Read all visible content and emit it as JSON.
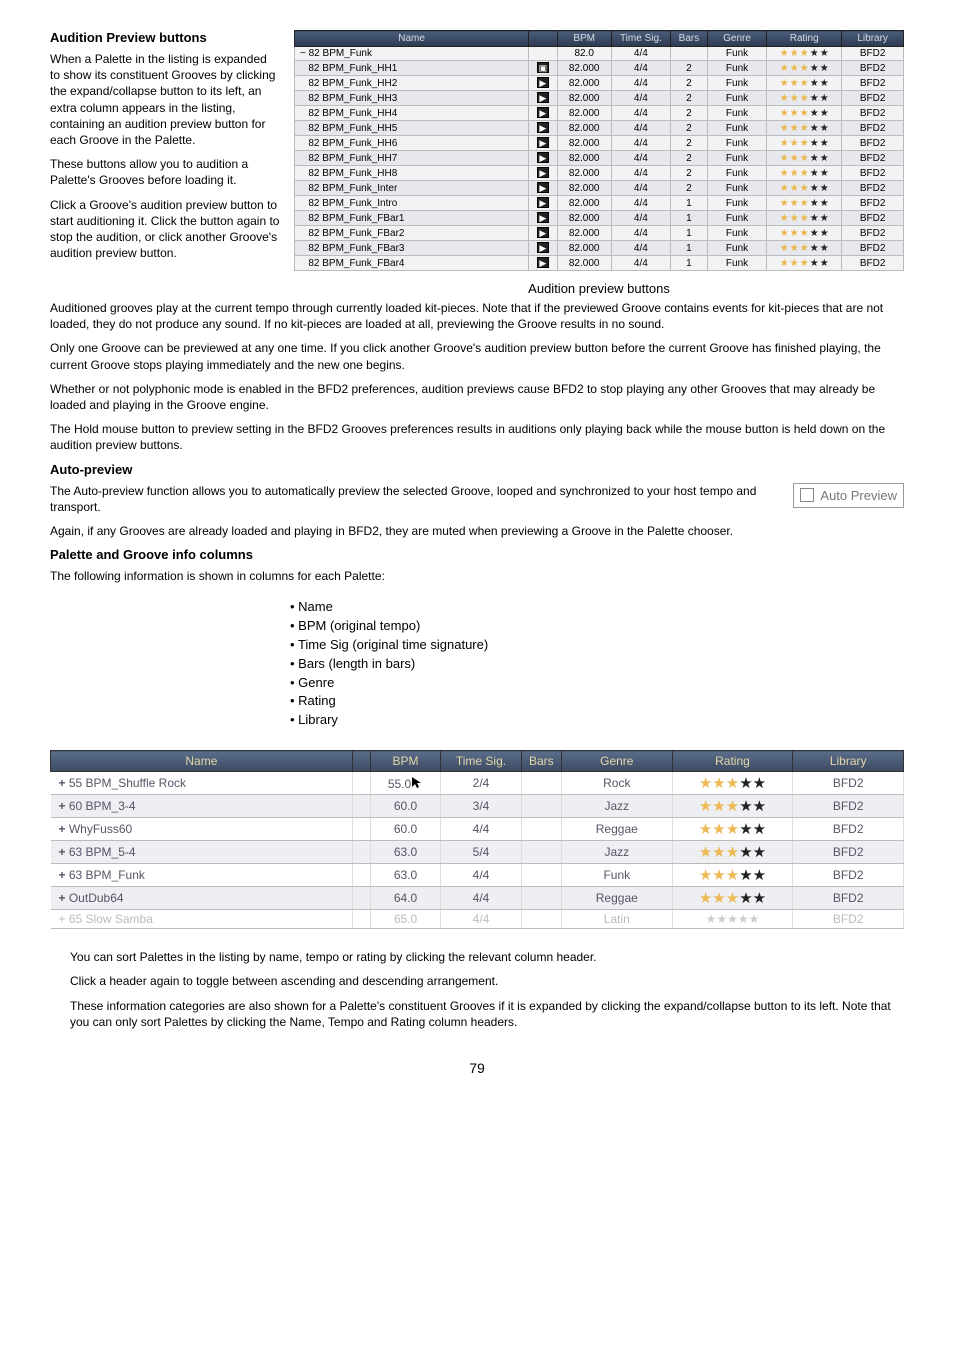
{
  "section1": {
    "heading": "Audition Preview buttons",
    "p1": "When a Palette in the listing is expanded to show its constituent Grooves by clicking the expand/collapse button to its left, an extra column appears in the listing, containing an audition preview button for each Groove in the Palette.",
    "p2": "These buttons allow you to audition a Palette's Grooves before loading it.",
    "p3": "Click a Groove's audition preview button to start auditioning it. Click the button again to stop the audition, or click another Groove's audition preview button."
  },
  "grooves_table": {
    "headers": [
      "Name",
      "",
      "BPM",
      "Time Sig.",
      "Bars",
      "Genre",
      "Rating",
      "Library"
    ],
    "col_widths": [
      "190px",
      "16px",
      "44px",
      "48px",
      "30px",
      "48px",
      "60px",
      "50px"
    ],
    "header_bg_from": "#4a5d7a",
    "header_bg_to": "#2d3a50",
    "header_fg": "#d8dde6",
    "row_odd_bg": "#f3f3f6",
    "row_even_bg": "#e7e7ee",
    "star_filled_color": "#eab648",
    "star_empty_color": "#222222",
    "rows": [
      {
        "name": "− 82 BPM_Funk",
        "icon": "",
        "bpm": "82.0",
        "ts": "4/4",
        "bars": "",
        "genre": "Funk",
        "lib": "BFD2",
        "alt": false,
        "sel": false
      },
      {
        "name": "82 BPM_Funk_HH1",
        "icon": "collapse",
        "bpm": "82.000",
        "ts": "4/4",
        "bars": "2",
        "genre": "Funk",
        "lib": "BFD2",
        "alt": true,
        "sel": true
      },
      {
        "name": "82 BPM_Funk_HH2",
        "icon": "play-cursor",
        "bpm": "82.000",
        "ts": "4/4",
        "bars": "2",
        "genre": "Funk",
        "lib": "BFD2",
        "alt": false,
        "sel": false
      },
      {
        "name": "82 BPM_Funk_HH3",
        "icon": "play",
        "bpm": "82.000",
        "ts": "4/4",
        "bars": "2",
        "genre": "Funk",
        "lib": "BFD2",
        "alt": true,
        "sel": false
      },
      {
        "name": "82 BPM_Funk_HH4",
        "icon": "play",
        "bpm": "82.000",
        "ts": "4/4",
        "bars": "2",
        "genre": "Funk",
        "lib": "BFD2",
        "alt": false,
        "sel": false
      },
      {
        "name": "82 BPM_Funk_HH5",
        "icon": "play",
        "bpm": "82.000",
        "ts": "4/4",
        "bars": "2",
        "genre": "Funk",
        "lib": "BFD2",
        "alt": true,
        "sel": false
      },
      {
        "name": "82 BPM_Funk_HH6",
        "icon": "play",
        "bpm": "82.000",
        "ts": "4/4",
        "bars": "2",
        "genre": "Funk",
        "lib": "BFD2",
        "alt": false,
        "sel": false
      },
      {
        "name": "82 BPM_Funk_HH7",
        "icon": "play",
        "bpm": "82.000",
        "ts": "4/4",
        "bars": "2",
        "genre": "Funk",
        "lib": "BFD2",
        "alt": true,
        "sel": false
      },
      {
        "name": "82 BPM_Funk_HH8",
        "icon": "play",
        "bpm": "82.000",
        "ts": "4/4",
        "bars": "2",
        "genre": "Funk",
        "lib": "BFD2",
        "alt": false,
        "sel": false
      },
      {
        "name": "82 BPM_Funk_Inter",
        "icon": "play",
        "bpm": "82.000",
        "ts": "4/4",
        "bars": "2",
        "genre": "Funk",
        "lib": "BFD2",
        "alt": true,
        "sel": false
      },
      {
        "name": "82 BPM_Funk_Intro",
        "icon": "play",
        "bpm": "82.000",
        "ts": "4/4",
        "bars": "1",
        "genre": "Funk",
        "lib": "BFD2",
        "alt": false,
        "sel": false
      },
      {
        "name": "82 BPM_Funk_FBar1",
        "icon": "play",
        "bpm": "82.000",
        "ts": "4/4",
        "bars": "1",
        "genre": "Funk",
        "lib": "BFD2",
        "alt": true,
        "sel": false
      },
      {
        "name": "82 BPM_Funk_FBar2",
        "icon": "play",
        "bpm": "82.000",
        "ts": "4/4",
        "bars": "1",
        "genre": "Funk",
        "lib": "BFD2",
        "alt": false,
        "sel": false
      },
      {
        "name": "82 BPM_Funk_FBar3",
        "icon": "play",
        "bpm": "82.000",
        "ts": "4/4",
        "bars": "1",
        "genre": "Funk",
        "lib": "BFD2",
        "alt": true,
        "sel": false
      },
      {
        "name": "82 BPM_Funk_FBar4",
        "icon": "play",
        "bpm": "82.000",
        "ts": "4/4",
        "bars": "1",
        "genre": "Funk",
        "lib": "BFD2",
        "alt": false,
        "sel": false
      }
    ],
    "caption": "Audition preview buttons"
  },
  "body_paras": [
    "Auditioned grooves play at the current tempo through currently loaded kit-pieces. Note that if the previewed Groove contains events for kit-pieces that are not loaded, they do not produce any sound. If no kit-pieces are loaded at all, previewing the Groove results in no sound.",
    "Only one Groove can be previewed at any one time. If you click another Groove's audition preview button before the current Groove has finished playing, the current Groove stops playing immediately and the new one begins.",
    "Whether or not polyphonic mode is enabled in the BFD2 preferences, audition previews cause BFD2 to stop playing any other Grooves that may already be loaded and playing in the Groove engine.",
    "The Hold mouse button to preview setting in the BFD2 Grooves preferences results in auditions only playing back while the mouse button is held down on the audition preview buttons."
  ],
  "autopreview": {
    "heading": "Auto-preview",
    "label": "Auto Preview",
    "p1": "The Auto-preview function allows you to automatically preview the selected Groove, looped and synchronized to your host tempo and transport.",
    "p2": "Again, if any Grooves are already loaded and playing in BFD2, they are muted when previewing a Groove in the Palette chooser."
  },
  "infocols": {
    "heading": "Palette and Groove info columns",
    "intro": "The following information is shown in columns for each Palette:",
    "items": [
      "Name",
      "BPM (original tempo)",
      "Time Sig (original time signature)",
      "Bars (length in bars)",
      "Genre",
      "Rating",
      "Library"
    ]
  },
  "palette_table": {
    "headers": [
      "Name",
      "",
      "BPM",
      "Time Sig.",
      "Bars",
      "Genre",
      "Rating",
      "Library"
    ],
    "header_bg_from": "#5a6d8a",
    "header_bg_to": "#3d4a62",
    "header_fg": "#e4d7a8",
    "star_filled_color": "#edb955",
    "star_empty_color": "#222222",
    "rows": [
      {
        "name": "+ 55 BPM_Shuffle Rock",
        "bpm": "55.0",
        "cursor": true,
        "ts": "2/4",
        "bars": "",
        "genre": "Rock",
        "lib": "BFD2",
        "even": false
      },
      {
        "name": "+ 60 BPM_3-4",
        "bpm": "60.0",
        "cursor": false,
        "ts": "3/4",
        "bars": "",
        "genre": "Jazz",
        "lib": "BFD2",
        "even": true
      },
      {
        "name": "+ WhyFuss60",
        "bpm": "60.0",
        "cursor": false,
        "ts": "4/4",
        "bars": "",
        "genre": "Reggae",
        "lib": "BFD2",
        "even": false
      },
      {
        "name": "+ 63 BPM_5-4",
        "bpm": "63.0",
        "cursor": false,
        "ts": "5/4",
        "bars": "",
        "genre": "Jazz",
        "lib": "BFD2",
        "even": true
      },
      {
        "name": "+ 63 BPM_Funk",
        "bpm": "63.0",
        "cursor": false,
        "ts": "4/4",
        "bars": "",
        "genre": "Funk",
        "lib": "BFD2",
        "even": false
      },
      {
        "name": "+ OutDub64",
        "bpm": "64.0",
        "cursor": false,
        "ts": "4/4",
        "bars": "",
        "genre": "Reggae",
        "lib": "BFD2",
        "even": true
      }
    ],
    "last_row": {
      "name": "+ 65 Slow Samba",
      "bpm": "65.0",
      "ts": "4/4",
      "bars": "",
      "genre": "Latin",
      "lib": "BFD2"
    }
  },
  "closing_paras": [
    "You can sort Palettes in the listing by name, tempo or rating by clicking the relevant column header.",
    "Click a header again to toggle between ascending and descending arrangement.",
    "These information categories are also shown for a Palette's constituent Grooves if it is expanded by clicking the expand/collapse button to its left. Note that you can only sort Palettes by clicking the Name, Tempo and Rating column headers."
  ],
  "page_number": "79"
}
